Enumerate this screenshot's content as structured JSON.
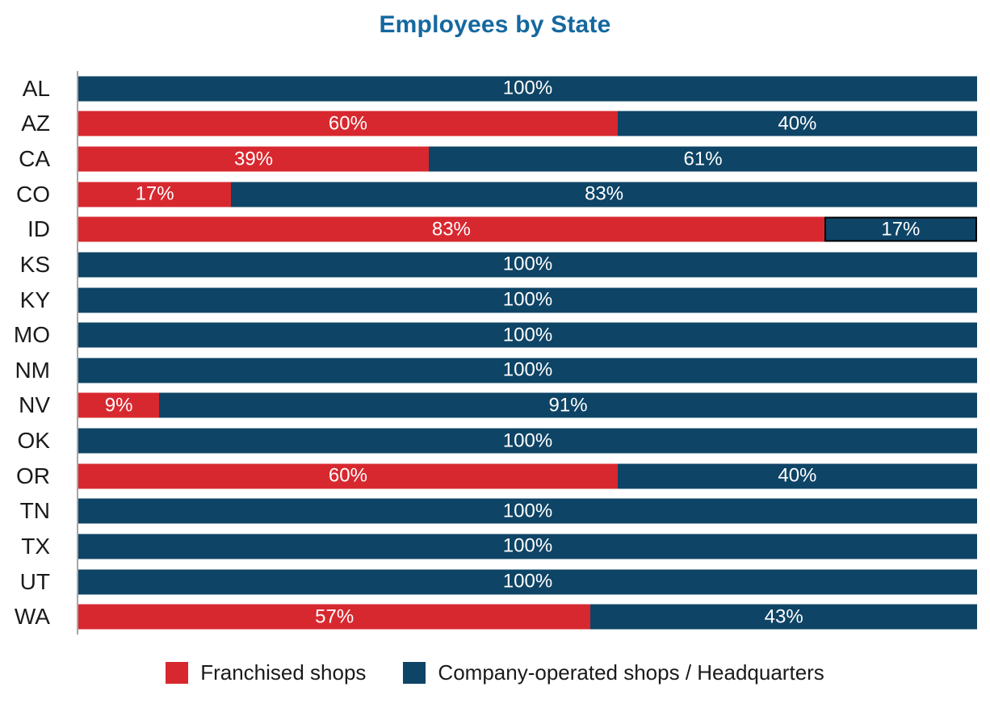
{
  "colors": {
    "franchised": "#D7282F",
    "company": "#0E4466",
    "title": "#15689F",
    "axis": "#A6A6A6",
    "state_label_text": "#1A1A1A",
    "value_text": "#FFFFFF",
    "highlight_border": "#000000"
  },
  "legend": {
    "items": [
      {
        "label": "Franchised shops",
        "color": "#D7282F"
      },
      {
        "label": "Company-operated shops / Headquarters",
        "color": "#0E4466"
      }
    ]
  },
  "chart_data": {
    "type": "bar",
    "orientation": "horizontal",
    "stacked": true,
    "title": "Employees by State",
    "xlabel": "",
    "ylabel": "",
    "xlim": [
      0,
      100
    ],
    "grid": false,
    "legend_position": "bottom",
    "value_label_format": "{v}%",
    "categories": [
      "AL",
      "AZ",
      "CA",
      "CO",
      "ID",
      "KS",
      "KY",
      "MO",
      "NM",
      "NV",
      "OK",
      "OR",
      "TN",
      "TX",
      "UT",
      "WA"
    ],
    "series": [
      {
        "name": "Franchised shops",
        "color": "#D7282F",
        "values": [
          0,
          60,
          39,
          17,
          83,
          0,
          0,
          0,
          0,
          9,
          0,
          60,
          0,
          0,
          0,
          57
        ]
      },
      {
        "name": "Company-operated shops / Headquarters",
        "color": "#0E4466",
        "values": [
          100,
          40,
          61,
          83,
          17,
          100,
          100,
          100,
          100,
          91,
          100,
          40,
          100,
          100,
          100,
          43
        ]
      }
    ],
    "highlight": {
      "category": "ID",
      "series": "Company-operated shops / Headquarters"
    }
  }
}
